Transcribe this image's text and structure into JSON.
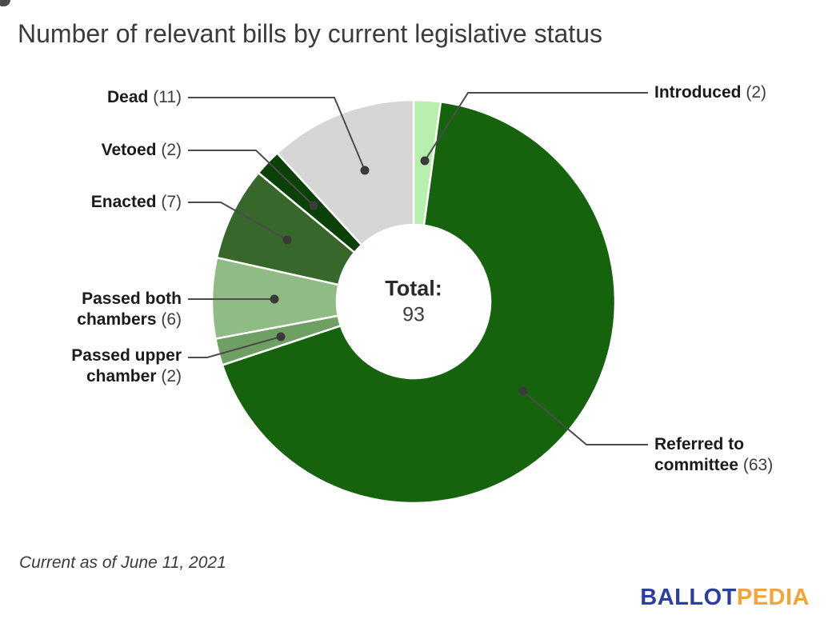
{
  "title": "Number of relevant bills by current legislative status",
  "footnote": "Current as of June 11, 2021",
  "logo": {
    "part1": "BALLOT",
    "part2": "PEDIA",
    "part1_color": "#2b3f9e",
    "part2_color": "#f2a33c"
  },
  "chart_data": {
    "type": "pie",
    "subtype": "donut",
    "title": "Number of relevant bills by current legislative status",
    "center_label": "Total:",
    "center_value": "93",
    "total": 93,
    "direction": "clockwise",
    "start_angle_deg": 0,
    "inner_radius_ratio": 0.38,
    "legend_position": "callout-labels",
    "slices": [
      {
        "label": "Introduced",
        "value": 2,
        "color": "#b7efad"
      },
      {
        "label": "Referred to committee",
        "value": 63,
        "color": "#16630d"
      },
      {
        "label": "Passed upper chamber",
        "value": 2,
        "color": "#6fa063"
      },
      {
        "label": "Passed both chambers",
        "value": 6,
        "color": "#8ebc84"
      },
      {
        "label": "Enacted",
        "value": 7,
        "color": "#37672b"
      },
      {
        "label": "Vetoed",
        "value": 2,
        "color": "#0b4007"
      },
      {
        "label": "Dead",
        "value": 11,
        "color": "#d6d6d6"
      }
    ]
  }
}
